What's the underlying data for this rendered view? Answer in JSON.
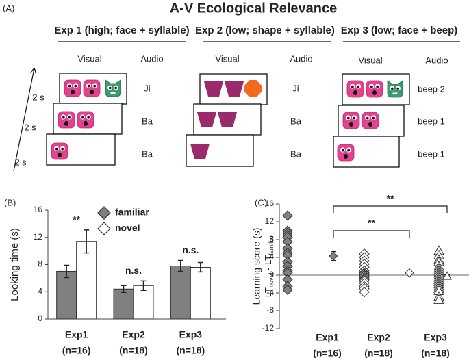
{
  "panel_a": {
    "label": "(A)",
    "title": "A-V Ecological Relevance",
    "time_labels": [
      "2 s",
      "2 s",
      "2 s"
    ],
    "experiments": [
      {
        "title": "Exp 1 (high; face + syllable)",
        "visual_header": "Visual",
        "audio_header": "Audio",
        "audio": [
          "Ji",
          "Ba",
          "Ba"
        ]
      },
      {
        "title": "Exp 2 (low; shape + syllable)",
        "visual_header": "Visual",
        "audio_header": "Audio",
        "audio": [
          "Ji",
          "Ba",
          "Ba"
        ]
      },
      {
        "title": "Exp 3 (low; face + beep)",
        "visual_header": "Visual",
        "audio_header": "Audio",
        "audio": [
          "beep 2",
          "beep 1",
          "beep 1"
        ]
      }
    ]
  },
  "chart_data": [
    {
      "type": "bar",
      "label": "(B)",
      "y_label": "Looking time (s)",
      "categories": [
        "Exp1",
        "Exp2",
        "Exp3"
      ],
      "category_notes": [
        "(n=16)",
        "(n=18)",
        "(n=18)"
      ],
      "series": [
        {
          "name": "familiar",
          "color": "#808080",
          "values": [
            7.0,
            4.4,
            7.8
          ],
          "errors": [
            0.9,
            0.5,
            0.8
          ]
        },
        {
          "name": "novel",
          "color": "#ffffff",
          "values": [
            11.4,
            4.9,
            7.6
          ],
          "errors": [
            1.7,
            0.7,
            0.7
          ]
        }
      ],
      "annotations": [
        "**",
        "n.s.",
        "n.s."
      ],
      "ylim": [
        0,
        16
      ],
      "yticks": [
        0,
        4,
        8,
        12,
        16
      ],
      "legend": "top"
    },
    {
      "type": "strip",
      "label": "(C)",
      "y_label": "Learning score (s)",
      "y_label_formula": [
        "LT",
        "novel",
        " - LT",
        "familiar"
      ],
      "categories": [
        "Exp1",
        "Exp2",
        "Exp3"
      ],
      "category_notes": [
        "(n=16)",
        "(n=18)",
        "(n=18)"
      ],
      "series": [
        {
          "marker": "diamond",
          "color": "#808080",
          "values": [
            13.4,
            10,
            9.5,
            9,
            8.5,
            7.5,
            6,
            5,
            4.5,
            3,
            2,
            1,
            0.5,
            -1,
            -2.5,
            -3.3
          ]
        },
        {
          "marker": "diamond",
          "color": "#ffffff",
          "values": [
            4.8,
            4,
            3.2,
            2.5,
            1.8,
            1,
            0.5,
            0.3,
            0,
            -0.2,
            -0.5,
            -0.8,
            -1,
            -1.3,
            -1.8,
            -2.5,
            -3,
            -3.8
          ]
        },
        {
          "marker": "triangle",
          "color": "#ffffff",
          "values": [
            5.5,
            4.5,
            3.5,
            3,
            2,
            1.5,
            1,
            0.5,
            0,
            -0.5,
            -1,
            -1.5,
            -2,
            -2.5,
            -3,
            -3.5,
            -4.8,
            -5.5
          ]
        }
      ],
      "means": {
        "values": [
          4.3,
          0.5,
          -0.2
        ],
        "errors": [
          1.0,
          0.3,
          0.3
        ]
      },
      "comparisons": [
        {
          "from": 0,
          "to": 2,
          "label": "**"
        },
        {
          "from": 0,
          "to": 1,
          "label": "**"
        }
      ],
      "hline": 0,
      "ylim": [
        -12,
        16
      ],
      "yticks": [
        -12,
        -8,
        -4,
        0,
        4,
        8,
        12,
        16
      ]
    }
  ]
}
